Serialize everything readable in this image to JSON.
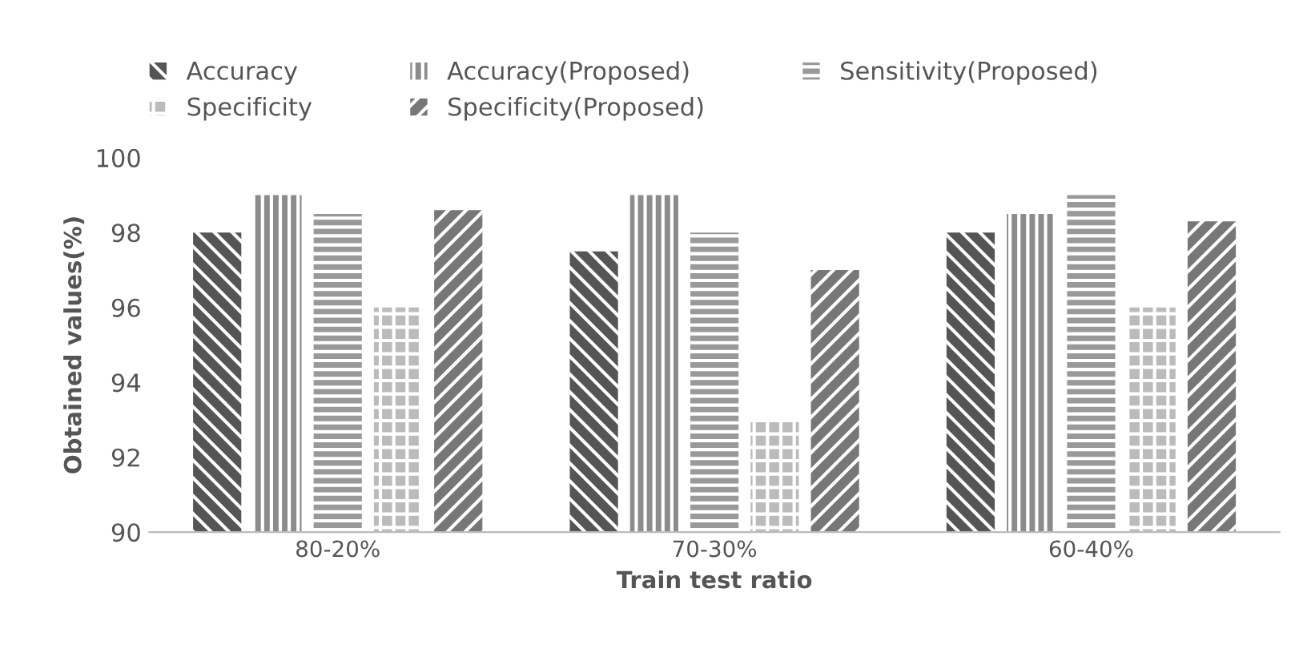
{
  "chart_data": {
    "type": "bar",
    "xlabel": "Train test ratio",
    "ylabel": "Obtained values(%)",
    "categories": [
      "80-20%",
      "70-30%",
      "60-40%"
    ],
    "series": [
      {
        "name": "Accuracy",
        "color": "#555555",
        "values": [
          98,
          97.5,
          98
        ]
      },
      {
        "name": "Accuracy(Proposed)",
        "color": "#8c8c8c",
        "values": [
          99,
          99,
          98.5
        ]
      },
      {
        "name": "Sensitivity(Proposed)",
        "color": "#999999",
        "values": [
          98.5,
          98,
          99
        ]
      },
      {
        "name": "Specificity",
        "color": "#bbbbbb",
        "values": [
          96,
          93,
          96
        ]
      },
      {
        "name": "Specificity(Proposed)",
        "color": "#777777",
        "values": [
          98.6,
          97,
          98.3
        ]
      }
    ],
    "ylim": [
      90,
      100
    ],
    "yticks": [
      90,
      92,
      94,
      96,
      98,
      100
    ],
    "grid": false,
    "legend": "top"
  }
}
